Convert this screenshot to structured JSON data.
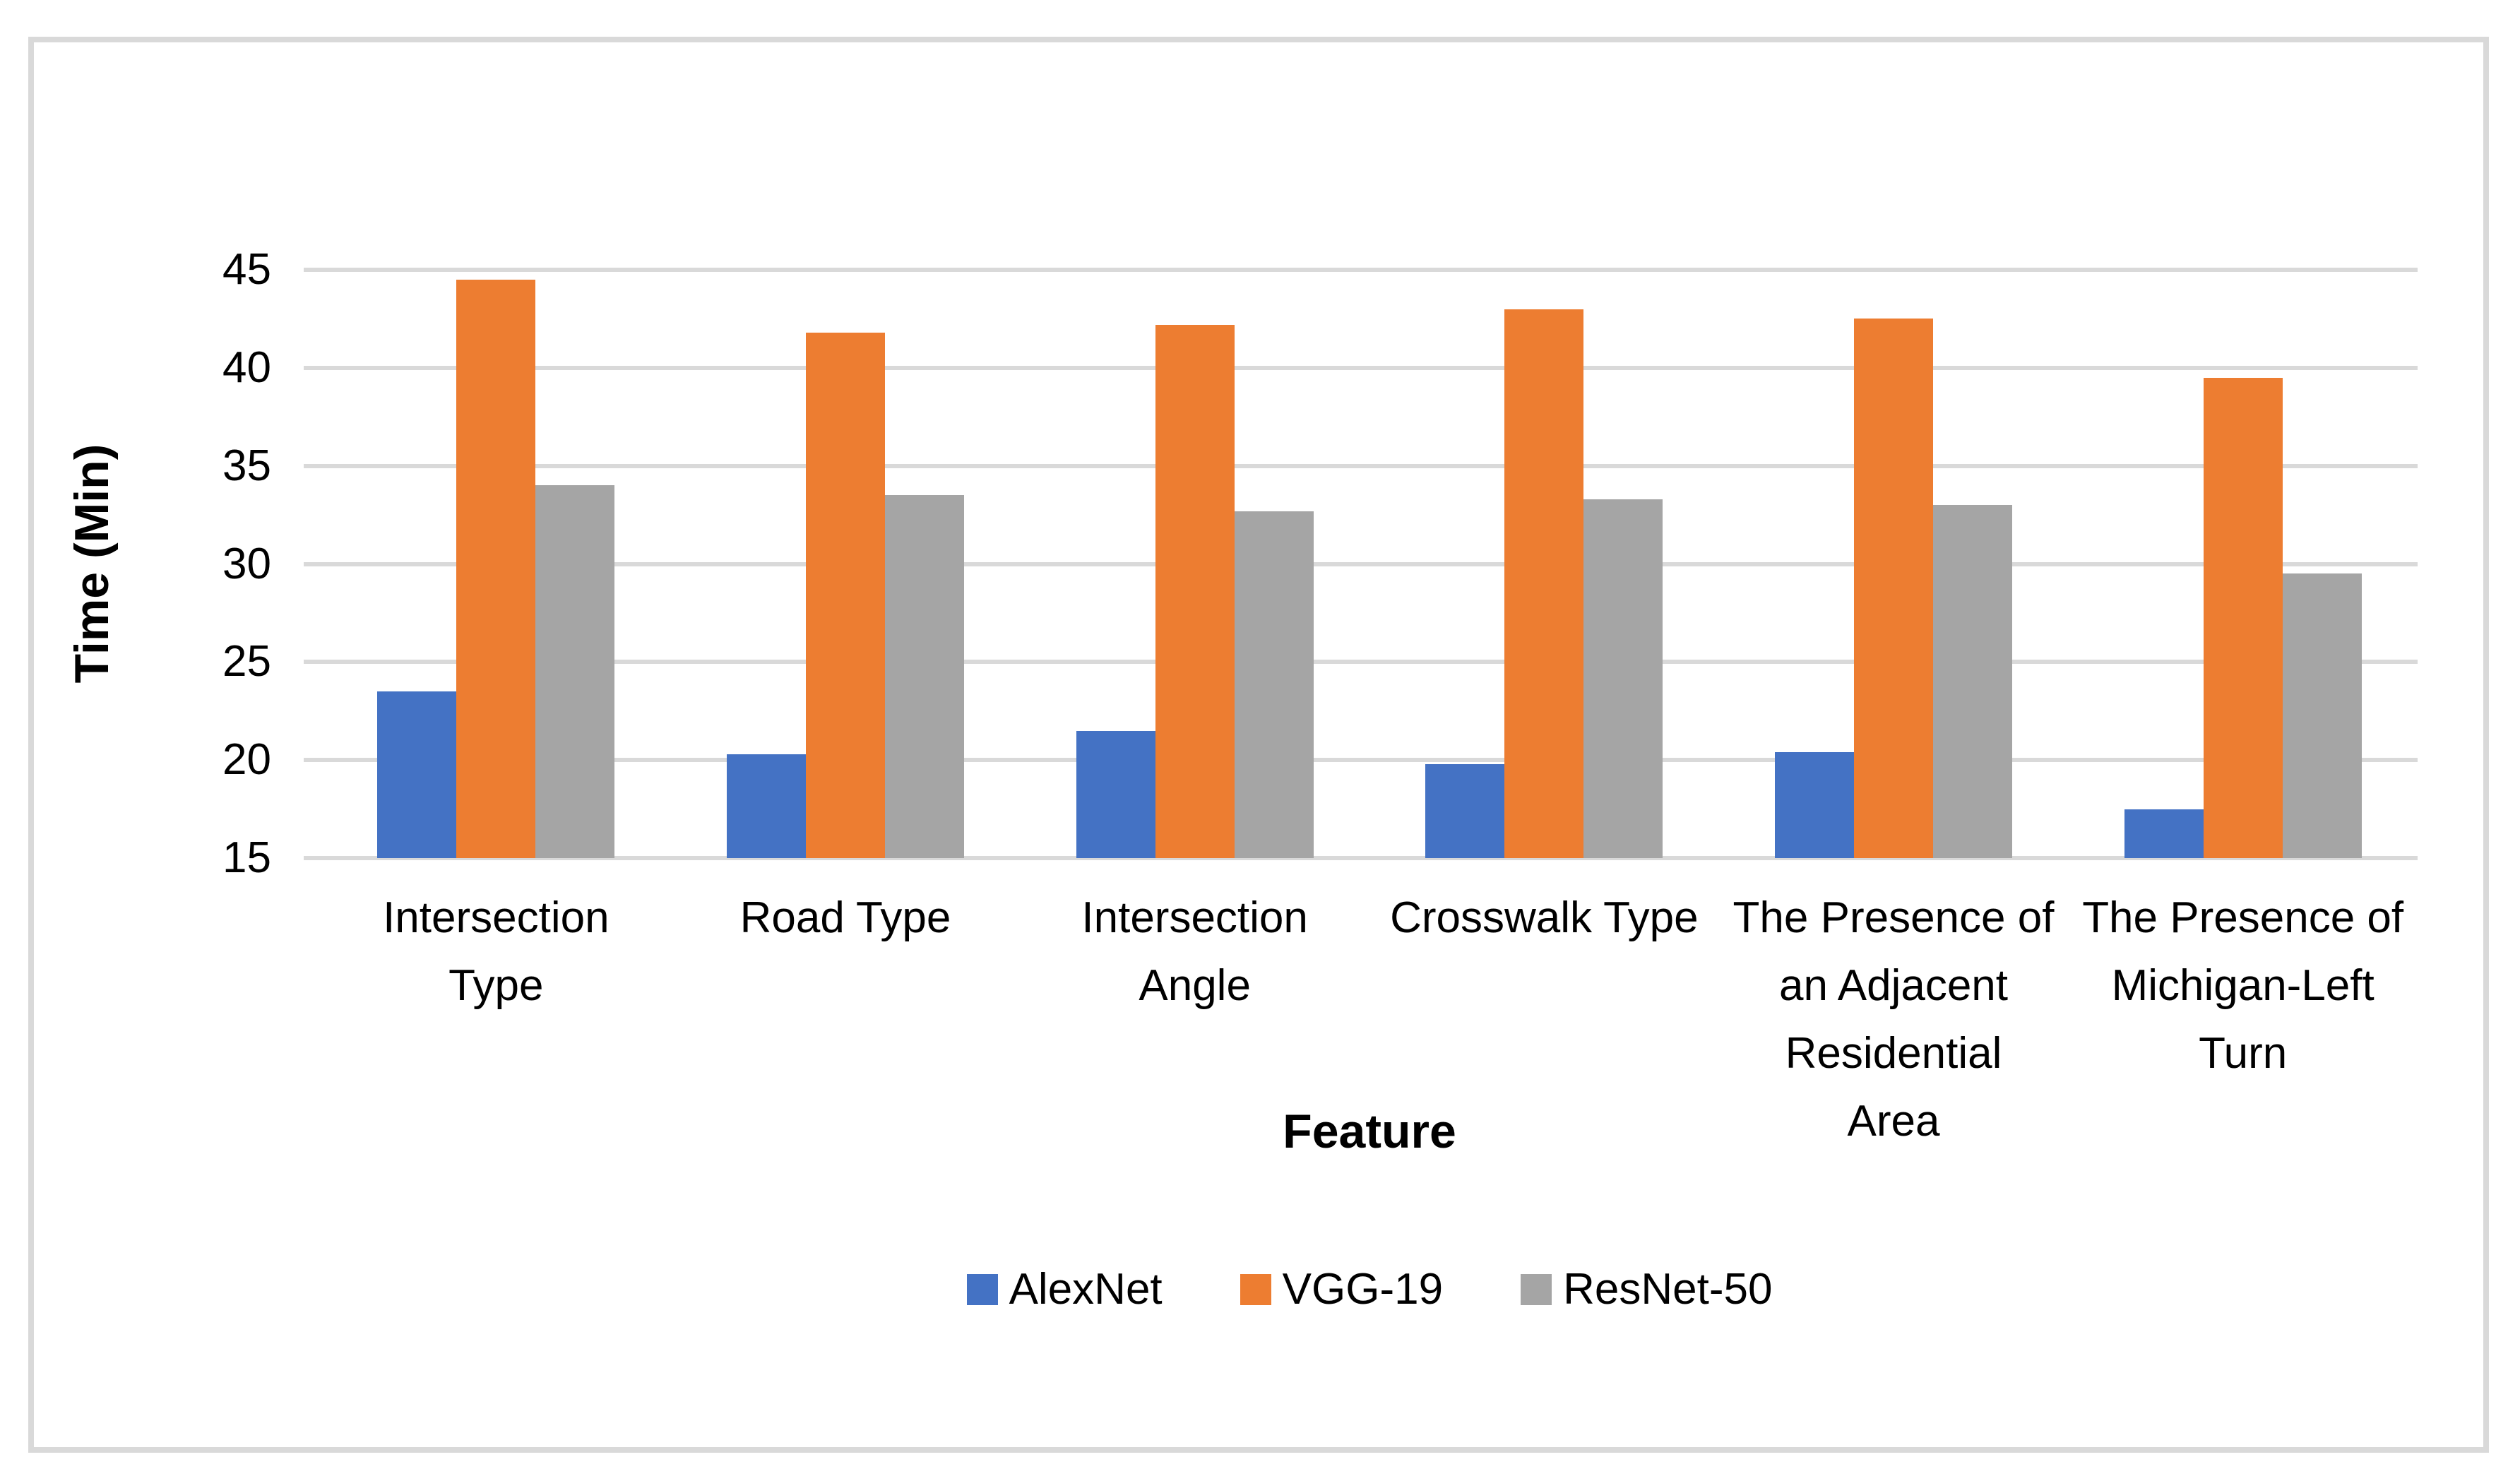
{
  "figure": {
    "description": "Grouped bar chart comparing training time of three CNN models across road features",
    "border_color": "#D9D9D9",
    "background": "#FFFFFF"
  },
  "chart_data": {
    "type": "bar",
    "title": "",
    "xlabel": "Feature",
    "ylabel": "Time (Min)",
    "ylim": [
      15,
      45
    ],
    "y_ticks": [
      15,
      20,
      25,
      30,
      35,
      40,
      45
    ],
    "grid": "horizontal",
    "gridline_color": "#D9D9D9",
    "legend_position": "bottom",
    "categories": [
      "Intersection\nType",
      "Road Type",
      "Intersection\nAngle",
      "Crosswalk Type",
      "The Presence of\nan Adjacent\nResidential\nArea",
      "The Presence of\nMichigan-Left\nTurn"
    ],
    "series": [
      {
        "name": "AlexNet",
        "color": "#4472C4",
        "values": [
          23.5,
          20.3,
          21.5,
          19.8,
          20.4,
          17.5
        ]
      },
      {
        "name": "VGG-19",
        "color": "#ED7D31",
        "values": [
          44.5,
          41.8,
          42.2,
          43.0,
          42.5,
          39.5
        ]
      },
      {
        "name": "ResNet-50",
        "color": "#A5A5A5",
        "values": [
          34.0,
          33.5,
          32.7,
          33.3,
          33.0,
          29.5
        ]
      }
    ]
  }
}
